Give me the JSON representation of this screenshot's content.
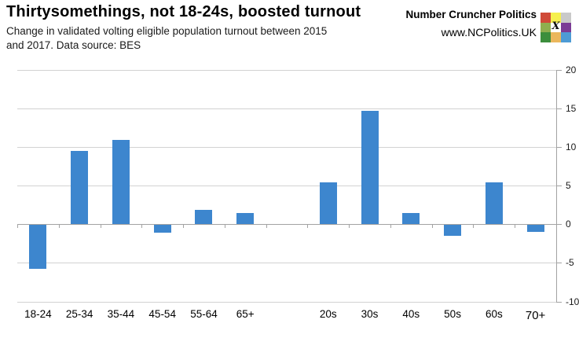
{
  "header": {
    "title": "Thirtysomethings, not 18-24s, boosted turnout",
    "subtitle_lines": [
      "Change in validated volting eligible population turnout between 2015",
      "and 2017. Data source: BES"
    ],
    "brand": "Number Cruncher Politics",
    "url": "www.NCPolitics.UK",
    "logo": {
      "x_glyph": "X",
      "cell_colors": [
        [
          "#d04a38",
          "#f6f04e",
          "#c9c9c9"
        ],
        [
          "#8fae4e",
          "#ffffff",
          "#7b3c95"
        ],
        [
          "#3c8e3c",
          "#ebb75c",
          "#4d9bd5"
        ]
      ]
    }
  },
  "chart_data": {
    "type": "bar",
    "title": "Thirtysomethings, not 18-24s, boosted turnout",
    "subtitle": "Change in validated volting eligible population turnout between 2015 and 2017. Data source: BES",
    "categories": [
      "18-24",
      "25-34",
      "35-44",
      "45-54",
      "55-64",
      "65+",
      "",
      "20s",
      "30s",
      "40s",
      "50s",
      "60s",
      "70+"
    ],
    "values": [
      -5.7,
      9.5,
      10.9,
      -1.0,
      1.9,
      1.5,
      null,
      5.4,
      14.7,
      1.5,
      -1.4,
      5.4,
      -0.9
    ],
    "xlabel": "",
    "ylabel": "",
    "ylim": [
      -10,
      20
    ],
    "yticks": [
      {
        "value": 20,
        "label": "20"
      },
      {
        "value": 15,
        "label": "15"
      },
      {
        "value": 10,
        "label": "10"
      },
      {
        "value": 5,
        "label": "5"
      },
      {
        "value": 0,
        "label": "0"
      },
      {
        "value": -5,
        "label": "-5"
      },
      {
        "value": -10,
        "label": "-10"
      }
    ],
    "grid": true,
    "legend": false,
    "axis_side": "right",
    "bar_color": "#3d86ce",
    "gridline_color": "#d2d2d2",
    "axis_color": "#a3a3a3"
  }
}
